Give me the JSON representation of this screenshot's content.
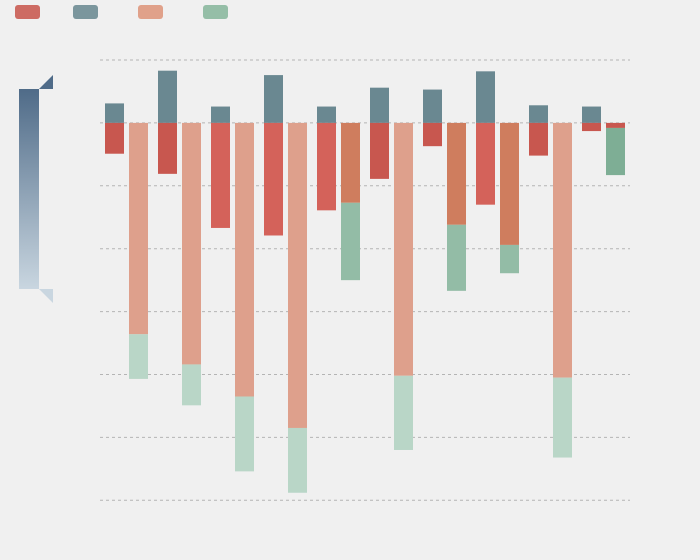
{
  "chart_data": {
    "type": "bar",
    "stacked": true,
    "grid": true,
    "legend_position": "top-left",
    "y_baseline": 0,
    "ylim": [
      -6.0,
      1.0
    ],
    "gridlines": [
      1.0,
      0.0,
      -1.0,
      -2.0,
      -3.0,
      -4.0,
      -5.0,
      -6.0
    ],
    "legend_colors": [
      "#cd6b63",
      "#7b969d",
      "#e0a18a",
      "#95bea7"
    ],
    "color_scale": {
      "from": "#4f6b88",
      "to": "#c9d6e0"
    },
    "colors": {
      "positive": "#6a8891",
      "red": "#c8574f",
      "red_light": "#d4625a",
      "salmon": "#dea08c",
      "orange": "#cf7d5e",
      "green_light": "#b9d6c7",
      "green": "#93bca6",
      "green_dark": "#7eae95"
    },
    "groups": [
      {
        "positive": 0.31,
        "left": [
          {
            "value": -0.49,
            "color": "red"
          }
        ],
        "right": [
          {
            "value": -3.36,
            "color": "salmon"
          },
          {
            "value": -0.71,
            "color": "green_light"
          }
        ]
      },
      {
        "positive": 0.83,
        "left": [
          {
            "value": -0.81,
            "color": "red"
          }
        ],
        "right": [
          {
            "value": -3.84,
            "color": "salmon"
          },
          {
            "value": -0.65,
            "color": "green_light"
          }
        ]
      },
      {
        "positive": 0.26,
        "left": [
          {
            "value": -1.67,
            "color": "red_light"
          }
        ],
        "right": [
          {
            "value": -4.35,
            "color": "salmon"
          },
          {
            "value": -1.19,
            "color": "green_light"
          }
        ]
      },
      {
        "positive": 0.76,
        "left": [
          {
            "value": -1.79,
            "color": "red_light"
          }
        ],
        "right": [
          {
            "value": -4.85,
            "color": "salmon"
          },
          {
            "value": -1.03,
            "color": "green_light"
          }
        ]
      },
      {
        "positive": 0.26,
        "left": [
          {
            "value": -1.39,
            "color": "red_light"
          }
        ],
        "right": [
          {
            "value": -1.27,
            "color": "orange"
          },
          {
            "value": -1.23,
            "color": "green"
          }
        ]
      },
      {
        "positive": 0.56,
        "left": [
          {
            "value": -0.89,
            "color": "red"
          }
        ],
        "right": [
          {
            "value": -4.02,
            "color": "salmon"
          },
          {
            "value": -1.18,
            "color": "green_light"
          }
        ]
      },
      {
        "positive": 0.53,
        "left": [
          {
            "value": -0.37,
            "color": "red"
          }
        ],
        "right": [
          {
            "value": -1.62,
            "color": "orange"
          },
          {
            "value": -1.05,
            "color": "green"
          }
        ]
      },
      {
        "positive": 0.82,
        "left": [
          {
            "value": -1.3,
            "color": "red_light"
          }
        ],
        "right": [
          {
            "value": -1.94,
            "color": "orange"
          },
          {
            "value": -0.45,
            "color": "green"
          }
        ]
      },
      {
        "positive": 0.28,
        "left": [
          {
            "value": -0.52,
            "color": "red"
          }
        ],
        "right": [
          {
            "value": -4.05,
            "color": "salmon"
          },
          {
            "value": -1.27,
            "color": "green_light"
          }
        ]
      },
      {
        "positive": 0.26,
        "left": [
          {
            "value": -0.13,
            "color": "red"
          }
        ],
        "right": [
          {
            "value": -0.08,
            "color": "red"
          },
          {
            "value": -0.75,
            "color": "green_dark"
          }
        ]
      }
    ]
  }
}
